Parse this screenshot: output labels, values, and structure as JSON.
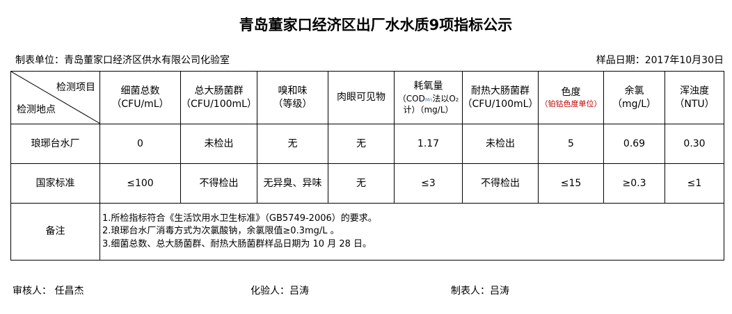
{
  "title": "青岛董家口经济区出厂水水质9项指标公示",
  "unit": "制表单位：青岛董家口经济区供水有限公司化验室",
  "sample_date": "样品日期：2017年10月30日",
  "corner": {
    "top": "检测项目",
    "bottom": "检测地点"
  },
  "headers": [
    {
      "name": "细菌总数",
      "unit": "（CFU/mL）"
    },
    {
      "name": "总大肠菌群",
      "unit": "（CFU/100mL）"
    },
    {
      "name": "嗅和味",
      "unit": "（等级）"
    },
    {
      "name": "肉眼可见物",
      "unit": ""
    },
    {
      "name": "耗氧量",
      "unit": "（COD",
      "unit_sub": "Mn",
      "unit_mid": "法以O",
      "unit_sub2": "2",
      "unit_end": "计）（mg/L）"
    },
    {
      "name": "耐热大肠菌群",
      "unit": "（CFU/100mL）"
    },
    {
      "name": "色度",
      "unit": "（铂钴色度单位）"
    },
    {
      "name": "余氯",
      "unit": "（mg/L）"
    },
    {
      "name": "浑浊度",
      "unit": "（NTU）"
    }
  ],
  "rows": [
    {
      "label": "琅琊台水厂",
      "values": [
        "0",
        "未检出",
        "无",
        "无",
        "1.17",
        "未检出",
        "5",
        "0.69",
        "0.30"
      ]
    },
    {
      "label": "国家标准",
      "values": [
        "≤100",
        "不得检出",
        "无异臭、异味",
        "无",
        "≤3",
        "不得检出",
        "≤15",
        "≥0.3",
        "≤1"
      ]
    }
  ],
  "notes": {
    "label": "备注",
    "lines": [
      "1.所检指标符合《生活饮用水卫生标准》（GB5749-2006）的要求。",
      "2.琅琊台水厂消毒方式为次氯酸钠，余氯限值≥0.3mg/L 。",
      "3.细菌总数、总大肠菌群、耐热大肠菌群样品日期为 10 月 28 日。"
    ]
  },
  "signatures": {
    "reviewer": "审核人：  任昌杰",
    "tester": "化验人：吕涛",
    "maker": "制表人：吕涛"
  },
  "colors": {
    "unit_note": "#c00000",
    "subscript": "#4a7ebb"
  }
}
